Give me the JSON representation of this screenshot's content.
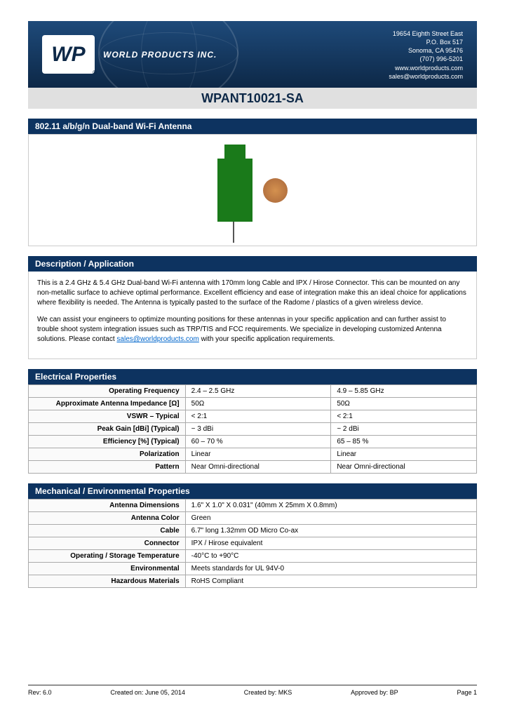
{
  "header": {
    "logo_text": "WP",
    "company": "WORLD PRODUCTS INC.",
    "contact": {
      "address1": "19654 Eighth Street East",
      "address2": "P.O. Box 517",
      "address3": "Sonoma, CA 95476",
      "phone": "(707) 996-5201",
      "web": "www.worldproducts.com",
      "email": "sales@worldproducts.com"
    }
  },
  "title": "WPANT10021-SA",
  "subtitle": "802.11 a/b/g/n Dual-band Wi-Fi Antenna",
  "description": {
    "heading": "Description / Application",
    "p1": "This is a 2.4 GHz & 5.4 GHz Dual-band Wi-Fi antenna with 170mm long Cable and IPX / Hirose Connector. This can be mounted on any non-metallic surface to achieve optimal performance. Excellent efficiency and ease of integration make this an ideal choice for applications where flexibility is needed. The Antenna is typically pasted to the surface of the Radome / plastics of a given wireless device.",
    "p2a": "We can assist your engineers to optimize mounting positions for these antennas in your specific application and can further assist to trouble shoot system integration issues such as TRP/TIS and FCC requirements. We specialize in developing customized Antenna solutions. Please contact ",
    "p2_link": "sales@worldproducts.com",
    "p2b": " with your specific application requirements."
  },
  "electrical": {
    "heading": "Electrical Properties",
    "rows": [
      {
        "label": "Operating Frequency",
        "v1": "2.4 – 2.5 GHz",
        "v2": "4.9 – 5.85 GHz"
      },
      {
        "label": "Approximate Antenna Impedance [Ω]",
        "v1": "50Ω",
        "v2": "50Ω"
      },
      {
        "label": "VSWR – Typical",
        "v1": "< 2:1",
        "v2": "< 2:1"
      },
      {
        "label": "Peak Gain [dBi] (Typical)",
        "v1": "~ 3 dBi",
        "v2": "~ 2 dBi"
      },
      {
        "label": "Efficiency [%] (Typical)",
        "v1": "60 – 70 %",
        "v2": "65 – 85 %"
      },
      {
        "label": "Polarization",
        "v1": "Linear",
        "v2": "Linear"
      },
      {
        "label": "Pattern",
        "v1": "Near Omni-directional",
        "v2": "Near Omni-directional"
      }
    ]
  },
  "mechanical": {
    "heading": "Mechanical / Environmental Properties",
    "rows": [
      {
        "label": "Antenna Dimensions",
        "v": "1.6\" X 1.0\" X 0.031\"          (40mm X 25mm X 0.8mm)"
      },
      {
        "label": "Antenna Color",
        "v": "Green"
      },
      {
        "label": "Cable",
        "v": "6.7\" long 1.32mm OD Micro Co-ax"
      },
      {
        "label": "Connector",
        "v": "IPX / Hirose equivalent"
      },
      {
        "label": "Operating / Storage Temperature",
        "v": "-40°C to +90°C"
      },
      {
        "label": "Environmental",
        "v": "Meets standards for UL 94V-0"
      },
      {
        "label": "Hazardous Materials",
        "v": "RoHS Compliant"
      }
    ]
  },
  "footer": {
    "rev": "Rev: 6.0",
    "created_on": "Created on: June 05, 2014",
    "created_by": "Created by: MKS",
    "approved_by": "Approved by: BP",
    "page": "Page  1"
  },
  "colors": {
    "header_bg": "#0d2847",
    "section_bg": "#0d3360",
    "title_bg": "#e0e0e0",
    "title_text": "#0d2847",
    "link": "#0066cc",
    "pcb": "#1a7a1a",
    "coin": "#a8663a"
  }
}
